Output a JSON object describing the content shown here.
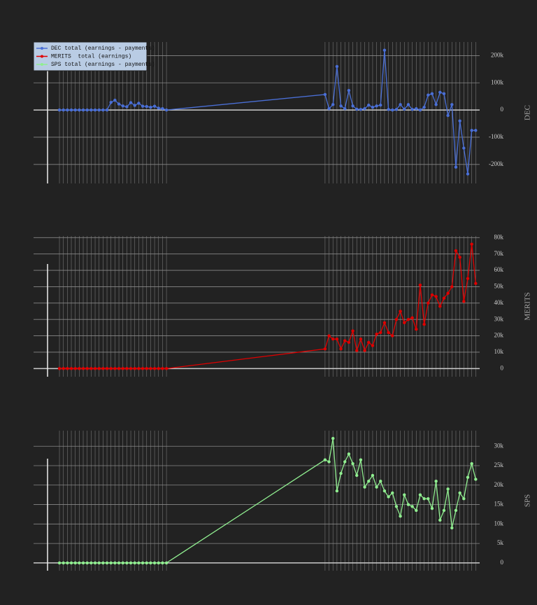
{
  "chart_data": [
    {
      "type": "line",
      "ylabel": "DEC",
      "legend": "upper left",
      "grid": true,
      "x": [
        3,
        4,
        5,
        6,
        7,
        8,
        9,
        10,
        11,
        12,
        13,
        14,
        15,
        16,
        17,
        18,
        19,
        20,
        21,
        22,
        23,
        24,
        25,
        26,
        27,
        28,
        29,
        30,
        70,
        71,
        72,
        73,
        74,
        75,
        76,
        77,
        78,
        79,
        80,
        81,
        82,
        83,
        84,
        85,
        86,
        87,
        88,
        89,
        90,
        91,
        92,
        93,
        94,
        95,
        96,
        97,
        98,
        99,
        100,
        101,
        102,
        103,
        104,
        105,
        106,
        107,
        108
      ],
      "xlim": [
        0,
        109
      ],
      "ylim": [
        -270000,
        250000
      ],
      "yticks": [
        {
          "value": -200000,
          "label": "-200k"
        },
        {
          "value": -100000,
          "label": "-100k"
        },
        0,
        {
          "value": 100000,
          "label": "100k"
        },
        {
          "value": 200000,
          "label": "200k"
        }
      ],
      "series": [
        {
          "name": "DEC total (earnings - payments)",
          "color": "#4a6fd6",
          "values": [
            0,
            0,
            0,
            0,
            0,
            0,
            0,
            0,
            0,
            0,
            0,
            0,
            0,
            28000,
            36000,
            22000,
            15000,
            12000,
            27000,
            17000,
            25000,
            14000,
            13000,
            10000,
            14000,
            7000,
            5000,
            0,
            57000,
            5000,
            20000,
            160000,
            15000,
            5000,
            72000,
            15000,
            3000,
            2000,
            5000,
            18000,
            10000,
            15000,
            18000,
            220000,
            2000,
            0,
            2000,
            20000,
            3000,
            20000,
            2000,
            5000,
            0,
            10000,
            55000,
            60000,
            20000,
            65000,
            60000,
            -20000,
            20000,
            -210000,
            -40000,
            -140000,
            -235000,
            -75000,
            -75000
          ]
        }
      ]
    },
    {
      "type": "line",
      "ylabel": "MERITS",
      "grid": true,
      "x": [
        3,
        4,
        5,
        6,
        7,
        8,
        9,
        10,
        11,
        12,
        13,
        14,
        15,
        16,
        17,
        18,
        19,
        20,
        21,
        22,
        23,
        24,
        25,
        26,
        27,
        28,
        29,
        30,
        70,
        71,
        72,
        73,
        74,
        75,
        76,
        77,
        78,
        79,
        80,
        81,
        82,
        83,
        84,
        85,
        86,
        87,
        88,
        89,
        90,
        91,
        92,
        93,
        94,
        95,
        96,
        97,
        98,
        99,
        100,
        101,
        102,
        103,
        104,
        105,
        106,
        107,
        108
      ],
      "xlim": [
        0,
        109
      ],
      "ylim": [
        -5000,
        81000
      ],
      "yticks": [
        0,
        {
          "value": 10000,
          "label": "10k"
        },
        {
          "value": 20000,
          "label": "20k"
        },
        {
          "value": 30000,
          "label": "30k"
        },
        {
          "value": 40000,
          "label": "40k"
        },
        {
          "value": 50000,
          "label": "50k"
        },
        {
          "value": 60000,
          "label": "60k"
        },
        {
          "value": 70000,
          "label": "70k"
        },
        {
          "value": 80000,
          "label": "80k"
        }
      ],
      "series": [
        {
          "name": "MERITS  total (earnings)",
          "color": "#e00000",
          "values": [
            0,
            0,
            0,
            0,
            0,
            0,
            0,
            0,
            0,
            0,
            0,
            0,
            0,
            0,
            0,
            0,
            0,
            0,
            0,
            0,
            0,
            0,
            0,
            0,
            0,
            0,
            0,
            0,
            12000,
            20000,
            18000,
            18000,
            12000,
            17000,
            16000,
            23000,
            11000,
            18000,
            11000,
            16000,
            14000,
            21000,
            22000,
            28000,
            22000,
            20000,
            30000,
            35000,
            28000,
            30000,
            31000,
            24000,
            51000,
            27000,
            40000,
            45000,
            44000,
            38000,
            43000,
            46000,
            50000,
            72000,
            68000,
            41000,
            55000,
            76000,
            52000
          ]
        }
      ]
    },
    {
      "type": "line",
      "ylabel": "SPS",
      "grid": true,
      "x": [
        3,
        4,
        5,
        6,
        7,
        8,
        9,
        10,
        11,
        12,
        13,
        14,
        15,
        16,
        17,
        18,
        19,
        20,
        21,
        22,
        23,
        24,
        25,
        26,
        27,
        28,
        29,
        30,
        70,
        71,
        72,
        73,
        74,
        75,
        76,
        77,
        78,
        79,
        80,
        81,
        82,
        83,
        84,
        85,
        86,
        87,
        88,
        89,
        90,
        91,
        92,
        93,
        94,
        95,
        96,
        97,
        98,
        99,
        100,
        101,
        102,
        103,
        104,
        105,
        106,
        107,
        108
      ],
      "xlim": [
        0,
        109
      ],
      "ylim": [
        -2000,
        34000
      ],
      "yticks": [
        0,
        {
          "value": 5000,
          "label": "5k"
        },
        {
          "value": 10000,
          "label": "10k"
        },
        {
          "value": 15000,
          "label": "15k"
        },
        {
          "value": 20000,
          "label": "20k"
        },
        {
          "value": 25000,
          "label": "25k"
        },
        {
          "value": 30000,
          "label": "30k"
        }
      ],
      "series": [
        {
          "name": "SPS total (earnings - payments)",
          "color": "#90ee90",
          "values": [
            0,
            0,
            0,
            0,
            0,
            0,
            0,
            0,
            0,
            0,
            0,
            0,
            0,
            0,
            0,
            0,
            0,
            0,
            0,
            0,
            0,
            0,
            0,
            0,
            0,
            0,
            0,
            0,
            26500,
            26000,
            32000,
            18500,
            23000,
            26000,
            28000,
            25500,
            22500,
            26500,
            19500,
            21000,
            22500,
            19500,
            21000,
            18500,
            17000,
            18000,
            14500,
            12000,
            17500,
            15000,
            14500,
            13500,
            17500,
            16500,
            16500,
            14000,
            21000,
            11000,
            13500,
            19000,
            9000,
            13500,
            18000,
            16500,
            22000,
            25500,
            21500
          ]
        }
      ]
    }
  ]
}
